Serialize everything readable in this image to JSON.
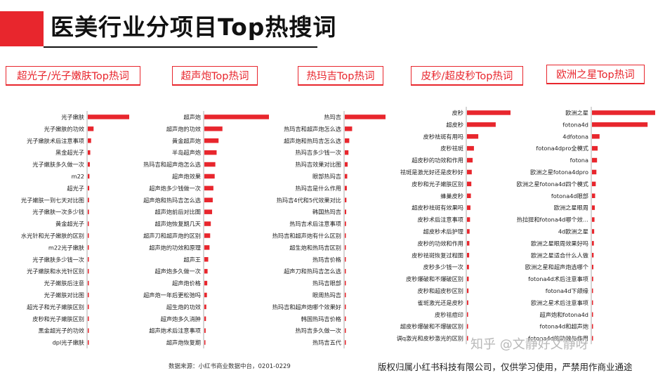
{
  "page": {
    "title": "医美行业分项目Top热搜词"
  },
  "footer": {
    "source": "数据来源：小红书商业数据中台，0201-0229",
    "copyright": "版权归属小红书科技有限公司，仅供学习使用，严禁用作商业通途"
  },
  "watermark": {
    "text": "知乎 @文静好文静呀"
  },
  "colors": {
    "accent": "#e8262d",
    "text": "#222222"
  },
  "chart_data": [
    {
      "type": "bar",
      "orientation": "horizontal",
      "title": "超光子/光子嫩肤Top热词",
      "categories": [
        "光子嫩肤",
        "光子嫩肤的功效",
        "光子嫩肤术后注意事项",
        "黑金超光子",
        "光子嫩肤多久做一次",
        "m22",
        "超光子",
        "光子嫩肤一到七天对比图",
        "光子嫩肤一次多少钱",
        "黄金超光子",
        "水光针和光子嫩肤的区别",
        "m22光子嫩肤",
        "光子嫩肤多少钱一次",
        "光子嫩肤和水光针区别",
        "光子嫩肤后注意",
        "光子嫩肤对比图",
        "超光子和光子嫩肤区别",
        "皮秒和光子嫩肤区别",
        "黑金超光子的功效",
        "dpl光子嫩肤"
      ],
      "values": [
        100,
        14,
        8,
        6,
        5,
        4,
        3.5,
        3,
        2.8,
        2.5,
        2.2,
        2,
        1.8,
        1.6,
        1.4,
        1.2,
        1,
        0.8,
        0.6,
        0.4
      ]
    },
    {
      "type": "bar",
      "orientation": "horizontal",
      "title": "超声炮Top热词",
      "categories": [
        "超声炮",
        "超声炮的功效",
        "黄金超声炮",
        "半岛超声炮",
        "热玛吉和超声炮怎么选",
        "超声炮效果",
        "超声炮多少钱做一次",
        "超声炮和热玛吉怎么选",
        "超声炮前后对比图",
        "超声炮恢复期几天",
        "超声刀和超声炮的区别",
        "超声炮的功效和原理",
        "超声王",
        "超声炮多久做一次",
        "超声炮价格",
        "超声炮一年后更松弛吗",
        "超生炮的功效",
        "超声炮多久消肿",
        "超声炮术后注意事项",
        "超声炮恢复期"
      ],
      "values": [
        100,
        28,
        22,
        19,
        17,
        16,
        14,
        13,
        12,
        10,
        9,
        8,
        6,
        5,
        4.5,
        4,
        3,
        2.5,
        2,
        1.5
      ]
    },
    {
      "type": "bar",
      "orientation": "horizontal",
      "title": "热玛吉Top热词",
      "categories": [
        "热玛吉",
        "热玛吉和超声炮怎么选",
        "超声炮和热玛吉怎么选",
        "热玛吉多少钱一次",
        "热玛吉效果对比图",
        "眼部热玛吉",
        "热玛吉是什么作用",
        "热玛吉4代和5代效果对比",
        "韩国热玛吉",
        "热玛吉术后注意事项",
        "热玛吉和超声炮有什么区别",
        "超生炮和热玛吉区别",
        "热玛吉价格",
        "超声刀和热玛吉怎么选",
        "热玛吉眼部",
        "眼周热玛吉",
        "热玛吉和超声炮哪个效果好",
        "韩国热玛吉价格",
        "热玛吉多久做一次",
        "热玛吉五代"
      ],
      "values": [
        100,
        18,
        11,
        9,
        7,
        6,
        5,
        4,
        3.5,
        3,
        2.6,
        2.3,
        2,
        1.7,
        1.5,
        1.3,
        1.1,
        0.9,
        0.7,
        0.5
      ]
    },
    {
      "type": "bar",
      "orientation": "horizontal",
      "title": "皮秒/超皮秒Top热词",
      "categories": [
        "皮秒",
        "超皮秒",
        "皮秒祛斑有用吗",
        "皮秒祛斑",
        "超皮秒的功效和作用",
        "祛斑是激光好还是皮秒好",
        "皮秒和光子嫩肤区别",
        "蜂巢皮秒",
        "超皮秒祛斑有效果吗",
        "皮秒术后注意事项",
        "超皮秒术后护理",
        "皮秒的功效和作用",
        "皮秒祛斑恢复过程图",
        "皮秒多少钱一次",
        "皮秒爆破和不爆破区别",
        "皮秒和超皮秒区别",
        "雀斑激光还是皮秒",
        "皮秒祛痘印",
        "超皮秒爆破和不爆破区别",
        "调q激光和皮秒激光的区别"
      ],
      "values": [
        100,
        66,
        26,
        16,
        13,
        11,
        10,
        9,
        8,
        7,
        6,
        5.5,
        5,
        4.5,
        4,
        3.5,
        3,
        2.5,
        2,
        1.5
      ]
    },
    {
      "type": "bar",
      "orientation": "horizontal",
      "title": "欧洲之星Top热词",
      "categories": [
        "欧洲之星",
        "fotona4d",
        "4dfotona",
        "fotona4dpro全模式",
        "fotona",
        "欧洲之星fotona4dpro",
        "欧洲之星fotona4d四个模式",
        "fotona4d眼部",
        "欧洲之星眼周",
        "热拉提和fotona4d哪个效…",
        "4d欧洲之星",
        "欧洲之星眼周效果好吗",
        "欧洲之星适合什么人做",
        "欧洲之星和超声炮选哪个",
        "fotona4d术后注意事项",
        "fotona4d下颌缘",
        "欧洲之星术后注意事项",
        "超声炮和fotona4d",
        "fotona4d和超声炮",
        "fotona4d的功效与作用"
      ],
      "values": [
        100,
        88,
        12,
        9,
        8,
        7,
        6,
        5,
        4.5,
        4,
        3.5,
        3,
        2.6,
        2.2,
        1.9,
        1.6,
        1.3,
        1,
        0.8,
        0.6
      ]
    }
  ]
}
